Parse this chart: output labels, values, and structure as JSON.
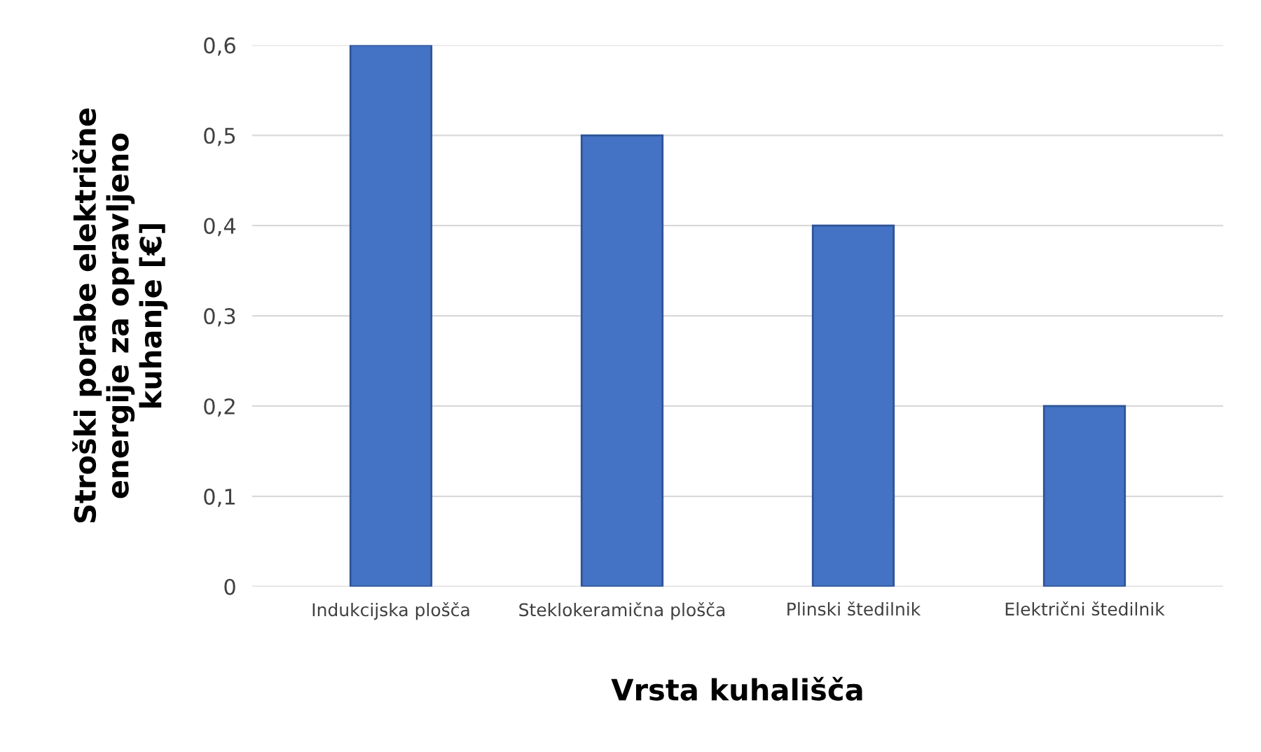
{
  "chart_data": {
    "type": "bar",
    "categories": [
      "Indukcijska plošča",
      "Steklokeramična plošča",
      "Plinski štedilnik",
      "Električni štedilnik"
    ],
    "values": [
      0.6,
      0.5,
      0.4,
      0.2
    ],
    "color": "#4472c4",
    "xlabel": "Vrsta kuhališča",
    "ylabel": "Stroški porabe električne\nenergije za opravljeno\nkuhanje [€]",
    "ylim": [
      0,
      0.6
    ],
    "yticks": [
      0,
      {
        "value": 0.1,
        "label": "0,1"
      },
      {
        "value": 0.2,
        "label": "0,2"
      },
      {
        "value": 0.3,
        "label": "0,3"
      },
      {
        "value": 0.4,
        "label": "0,4"
      },
      {
        "value": 0.5,
        "label": "0,5"
      },
      {
        "value": 0.6,
        "label": "0,6"
      }
    ],
    "grid": "y",
    "legend": false
  }
}
